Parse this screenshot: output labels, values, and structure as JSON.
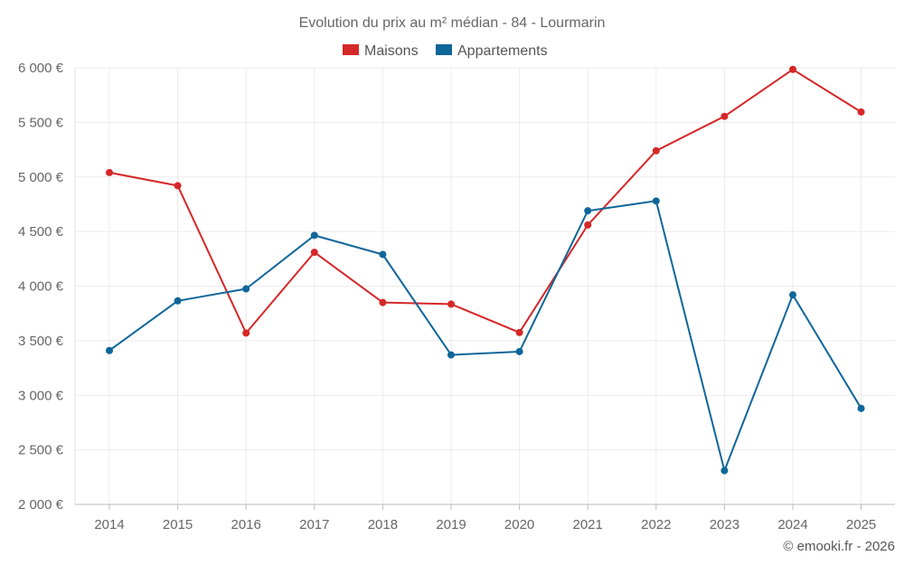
{
  "chart_data": {
    "type": "line",
    "title": "Evolution du prix au m² médian - 84 - Lourmarin",
    "categories": [
      "2014",
      "2015",
      "2016",
      "2017",
      "2018",
      "2019",
      "2020",
      "2021",
      "2022",
      "2023",
      "2024",
      "2025"
    ],
    "series": [
      {
        "name": "Maisons",
        "color": "#d62728",
        "values": [
          5040,
          4920,
          3570,
          4310,
          3850,
          3835,
          3575,
          4560,
          5240,
          5555,
          5985,
          5595
        ]
      },
      {
        "name": "Appartements",
        "color": "#0f6698",
        "values": [
          3410,
          3865,
          3975,
          4465,
          4290,
          3370,
          3400,
          4690,
          4780,
          2310,
          3920,
          2880
        ]
      }
    ],
    "ylim": [
      2000,
      6000
    ],
    "ytick_labels": [
      "2 000 €",
      "2 500 €",
      "3 000 €",
      "3 500 €",
      "4 000 €",
      "4 500 €",
      "5 000 €",
      "5 500 €",
      "6 000 €"
    ],
    "ytick_values": [
      2000,
      2500,
      3000,
      3500,
      4000,
      4500,
      5000,
      5500,
      6000
    ],
    "grid": true,
    "legend_position": "top-center",
    "xlabel": "",
    "ylabel": ""
  },
  "credit": "© emooki.fr - 2026"
}
